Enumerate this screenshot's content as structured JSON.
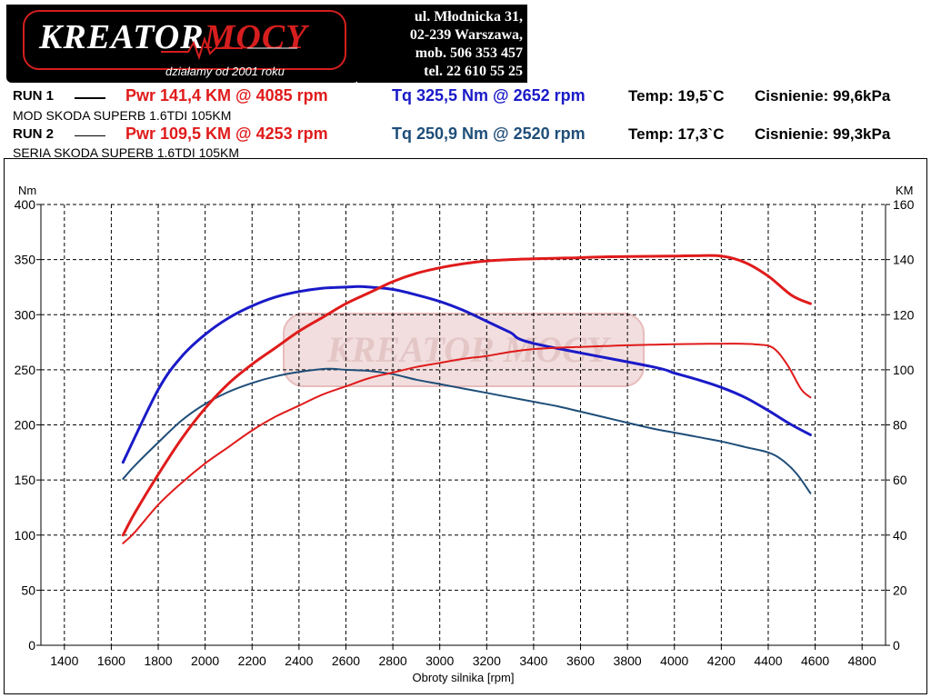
{
  "header": {
    "logo": {
      "name_part1": "KREATOR",
      "name_part2": "MOCY",
      "tagline": "działamy od 2001 roku"
    },
    "address": [
      "ul. Młodnicka 31,",
      "02-239  Warszawa,",
      "mob.  506 353 457",
      "tel.  22 610 55 25"
    ]
  },
  "runs": [
    {
      "label": "RUN 1",
      "pwr": "Pwr  141,4 KM @ 4085 rpm",
      "tq": "Tq  325,5 Nm @ 2652 rpm",
      "temp": "Temp: 19,5`C",
      "pressure": "Cisnienie: 99,6kPa",
      "description": "MOD SKODA SUPERB 1.6TDI 105KM",
      "pwr_color": "#e01b1b",
      "tq_color": "#1a1ac8"
    },
    {
      "label": "RUN 2",
      "pwr": "Pwr  109,5 KM @ 4253 rpm",
      "tq": "Tq  250,9 Nm @ 2520 rpm",
      "temp": "Temp: 17,3`C",
      "pressure": "Cisnienie: 99,3kPa",
      "description": "SERIA SKODA SUPERB 1.6TDI 105KM",
      "pwr_color": "#e01b1b",
      "tq_color": "#1f4e79"
    }
  ],
  "chart_data": {
    "type": "line",
    "xlabel": "Obroty silnika [rpm]",
    "ylabel_left": "Nm",
    "ylabel_right": "KM",
    "xlim": [
      1300,
      4900
    ],
    "ylim_left": [
      0,
      400
    ],
    "ylim_right": [
      0,
      160
    ],
    "x_ticks": [
      1400,
      1600,
      1800,
      2000,
      2200,
      2400,
      2600,
      2800,
      3000,
      3200,
      3400,
      3600,
      3800,
      4000,
      4200,
      4400,
      4600,
      4800
    ],
    "y_ticks_left": [
      0,
      50,
      100,
      150,
      200,
      250,
      300,
      350,
      400
    ],
    "y_ticks_right": [
      0,
      20,
      40,
      60,
      80,
      100,
      120,
      140,
      160
    ],
    "grid": true,
    "watermark": "KREATOR MOCY",
    "series": [
      {
        "axis": "left",
        "color": "#1a1ac8",
        "width": 3,
        "points": [
          [
            1650,
            166
          ],
          [
            1700,
            188
          ],
          [
            1800,
            232
          ],
          [
            1900,
            262
          ],
          [
            2000,
            282
          ],
          [
            2100,
            297
          ],
          [
            2200,
            308
          ],
          [
            2300,
            316
          ],
          [
            2400,
            321
          ],
          [
            2500,
            324
          ],
          [
            2600,
            325
          ],
          [
            2652,
            325.5
          ],
          [
            2700,
            325
          ],
          [
            2800,
            323
          ],
          [
            2900,
            318
          ],
          [
            3000,
            312
          ],
          [
            3100,
            304
          ],
          [
            3200,
            294
          ],
          [
            3300,
            284
          ],
          [
            3400,
            274
          ],
          [
            3500,
            265
          ],
          [
            3600,
            275
          ],
          [
            3600,
            256
          ],
          [
            3700,
            248
          ],
          [
            3800,
            262
          ],
          [
            3800,
            240
          ],
          [
            3900,
            253
          ],
          [
            4000,
            247
          ],
          [
            4100,
            241
          ],
          [
            4200,
            234
          ],
          [
            4300,
            225
          ],
          [
            4400,
            213
          ],
          [
            4500,
            200
          ],
          [
            4580,
            191
          ]
        ]
      },
      {
        "axis": "left",
        "color": "#1f4e79",
        "width": 2,
        "points": [
          [
            1650,
            151
          ],
          [
            1700,
            163
          ],
          [
            1800,
            184
          ],
          [
            1900,
            204
          ],
          [
            2000,
            219
          ],
          [
            2100,
            230
          ],
          [
            2200,
            238
          ],
          [
            2300,
            244
          ],
          [
            2400,
            248
          ],
          [
            2520,
            250.9
          ],
          [
            2600,
            250
          ],
          [
            2700,
            249
          ],
          [
            2800,
            246
          ],
          [
            2900,
            241
          ],
          [
            3000,
            237
          ],
          [
            3100,
            233
          ],
          [
            3200,
            229
          ],
          [
            3300,
            225
          ],
          [
            3400,
            221
          ],
          [
            3500,
            217
          ],
          [
            3600,
            212
          ],
          [
            3700,
            207
          ],
          [
            3800,
            202
          ],
          [
            3900,
            197
          ],
          [
            4000,
            193
          ],
          [
            4100,
            189
          ],
          [
            4200,
            185
          ],
          [
            4300,
            180
          ],
          [
            4400,
            175
          ],
          [
            4460,
            168
          ],
          [
            4520,
            156
          ],
          [
            4580,
            138
          ]
        ]
      },
      {
        "axis": "right",
        "color": "#e01b1b",
        "width": 3,
        "points": [
          [
            1650,
            40
          ],
          [
            1700,
            48
          ],
          [
            1800,
            62
          ],
          [
            1900,
            75
          ],
          [
            2000,
            86
          ],
          [
            2100,
            95
          ],
          [
            2200,
            102
          ],
          [
            2300,
            108
          ],
          [
            2400,
            114
          ],
          [
            2500,
            119
          ],
          [
            2600,
            124
          ],
          [
            2700,
            128
          ],
          [
            2800,
            132
          ],
          [
            2900,
            135
          ],
          [
            3000,
            137
          ],
          [
            3100,
            138.5
          ],
          [
            3200,
            139.5
          ],
          [
            3300,
            140
          ],
          [
            3400,
            140.3
          ],
          [
            3500,
            140.5
          ],
          [
            3600,
            140.7
          ],
          [
            3700,
            141
          ],
          [
            3800,
            141.1
          ],
          [
            3900,
            141.2
          ],
          [
            4000,
            141.3
          ],
          [
            4085,
            141.4
          ],
          [
            4200,
            141.3
          ],
          [
            4300,
            139
          ],
          [
            4400,
            134
          ],
          [
            4500,
            127
          ],
          [
            4580,
            124
          ]
        ]
      },
      {
        "axis": "right",
        "color": "#e01b1b",
        "width": 2,
        "points": [
          [
            1650,
            37
          ],
          [
            1700,
            41
          ],
          [
            1800,
            51
          ],
          [
            1900,
            59
          ],
          [
            2000,
            66
          ],
          [
            2100,
            72
          ],
          [
            2200,
            78
          ],
          [
            2300,
            83
          ],
          [
            2400,
            87
          ],
          [
            2500,
            91
          ],
          [
            2600,
            94
          ],
          [
            2700,
            97
          ],
          [
            2800,
            99
          ],
          [
            2900,
            101
          ],
          [
            3000,
            102.5
          ],
          [
            3100,
            104
          ],
          [
            3200,
            105
          ],
          [
            3300,
            106.5
          ],
          [
            3400,
            107.5
          ],
          [
            3500,
            108
          ],
          [
            3600,
            108.3
          ],
          [
            3700,
            108.6
          ],
          [
            3800,
            108.9
          ],
          [
            3900,
            109.1
          ],
          [
            4000,
            109.3
          ],
          [
            4100,
            109.4
          ],
          [
            4253,
            109.5
          ],
          [
            4350,
            109.2
          ],
          [
            4420,
            108
          ],
          [
            4480,
            102
          ],
          [
            4540,
            93
          ],
          [
            4580,
            90
          ]
        ]
      }
    ]
  }
}
